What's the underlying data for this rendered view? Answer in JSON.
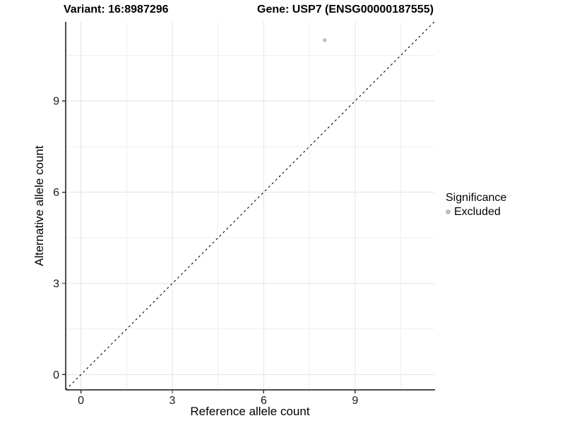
{
  "chart_data": {
    "type": "scatter",
    "title_left": "Variant: 16:8987296",
    "title_right": "Gene: USP7 (ENSG00000187555)",
    "xlabel": "Reference allele count",
    "ylabel": "Alternative allele count",
    "xlim": [
      -0.5,
      11.6
    ],
    "ylim": [
      -0.5,
      11.6
    ],
    "xticks": [
      0,
      3,
      6,
      9
    ],
    "yticks": [
      0,
      3,
      6,
      9
    ],
    "minor_gridlines": [
      1.5,
      4.5,
      7.5,
      10.5
    ],
    "grid": true,
    "points": [
      {
        "x": 8,
        "y": 11,
        "significance": "Excluded"
      }
    ],
    "identity_line": {
      "style": "dashed",
      "equation": "y = x"
    },
    "legend": {
      "title": "Significance",
      "position": "right",
      "entries": [
        {
          "label": "Excluded",
          "color": "#bdbdbd"
        }
      ]
    },
    "colors": {
      "point": "#bdbdbd",
      "grid_major": "#e3e3e3",
      "grid_minor": "#efefef",
      "axis_line": "#4d4d4d",
      "tick_mark": "#333333",
      "tick_text": "#1a1a1a",
      "identity_line": "#000000",
      "background": "#ffffff"
    }
  }
}
